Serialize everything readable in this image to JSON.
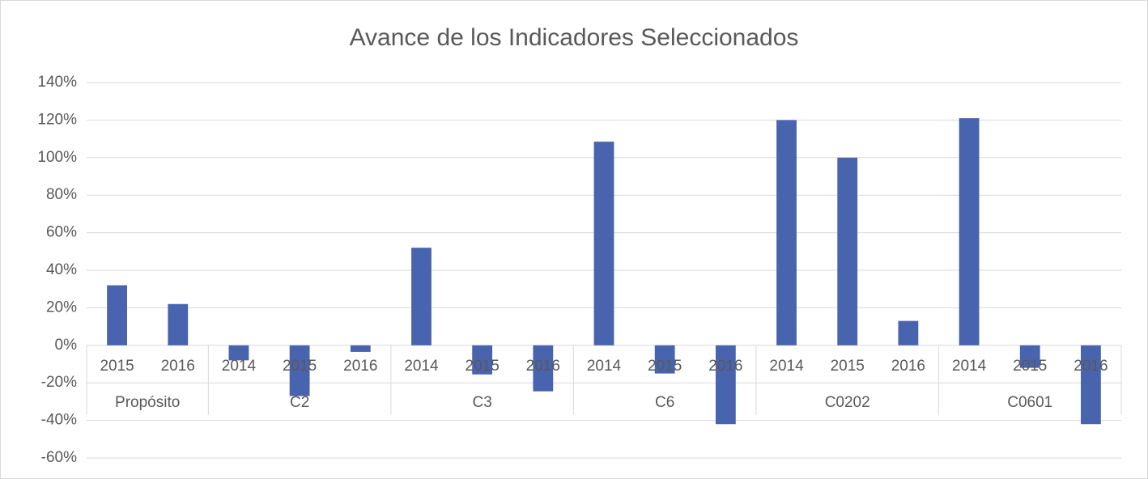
{
  "chart_data": {
    "type": "bar",
    "title": "Avance de los Indicadores Seleccionados",
    "color": "#4964ae",
    "grid": true,
    "ylim": [
      -60,
      140
    ],
    "yticks": [
      {
        "value": -60,
        "label": "-60%"
      },
      {
        "value": -40,
        "label": "-40%"
      },
      {
        "value": -20,
        "label": "-20%"
      },
      {
        "value": 0,
        "label": "0%"
      },
      {
        "value": 20,
        "label": "20%"
      },
      {
        "value": 40,
        "label": "40%"
      },
      {
        "value": 60,
        "label": "60%"
      },
      {
        "value": 80,
        "label": "80%"
      },
      {
        "value": 100,
        "label": "100%"
      },
      {
        "value": 120,
        "label": "120%"
      },
      {
        "value": 140,
        "label": "140%"
      }
    ],
    "groups": [
      {
        "name": "Propósito",
        "categories": [
          "2015",
          "2016"
        ],
        "values": [
          32,
          22
        ]
      },
      {
        "name": "C2",
        "categories": [
          "2014",
          "2015",
          "2016"
        ],
        "values": [
          -8,
          -27,
          -3.5
        ]
      },
      {
        "name": "C3",
        "categories": [
          "2014",
          "2015",
          "2016"
        ],
        "values": [
          52,
          -15.5,
          -24.5
        ]
      },
      {
        "name": "C6",
        "categories": [
          "2014",
          "2015",
          "2016"
        ],
        "values": [
          108.5,
          -15,
          -42
        ]
      },
      {
        "name": "C0202",
        "categories": [
          "2014",
          "2015",
          "2016"
        ],
        "values": [
          120,
          100,
          13
        ]
      },
      {
        "name": "C0601",
        "categories": [
          "2014",
          "2015",
          "2016"
        ],
        "values": [
          121,
          -12,
          -42
        ]
      }
    ]
  }
}
